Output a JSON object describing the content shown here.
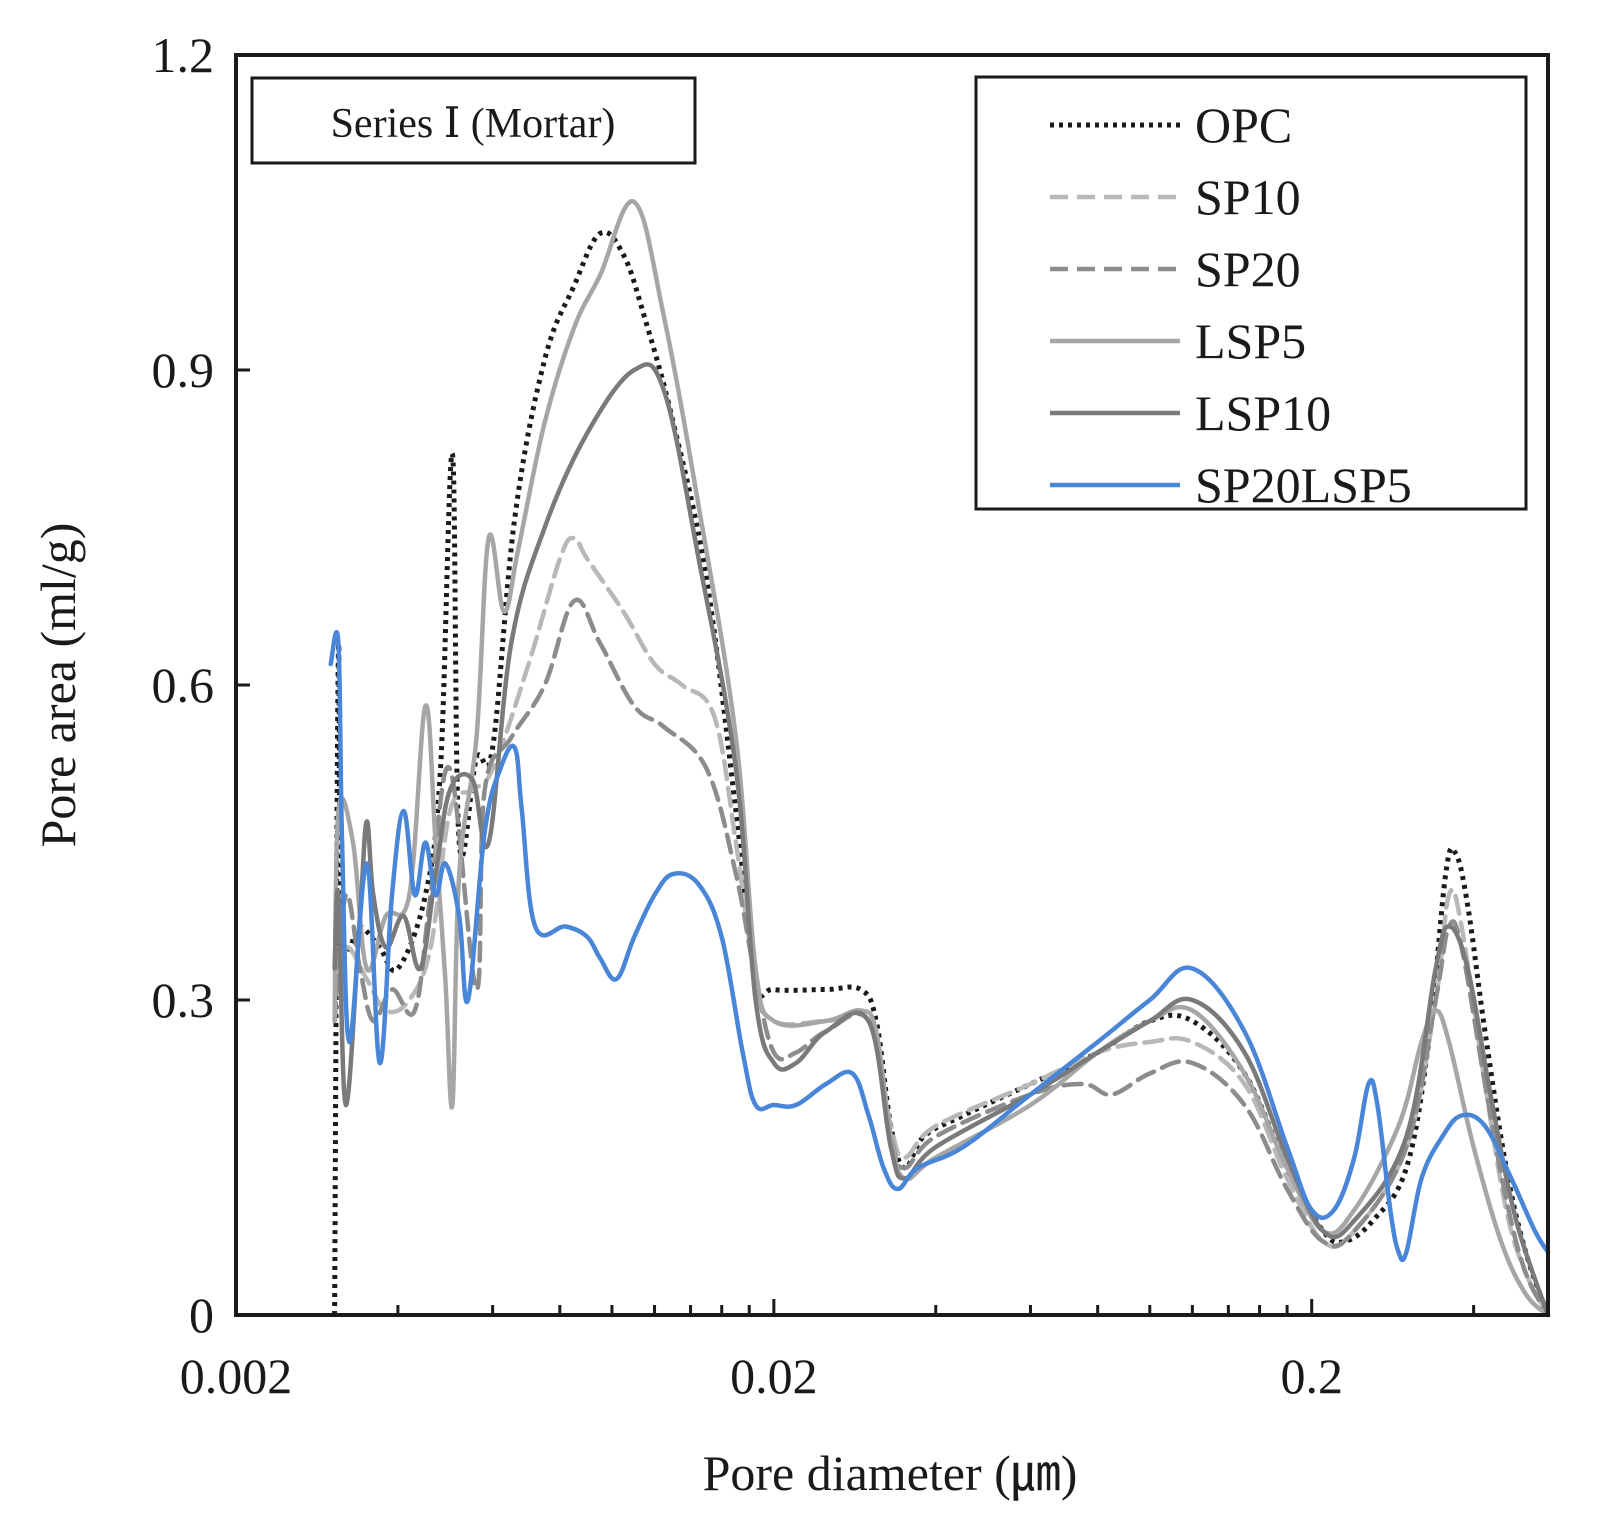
{
  "chart_data": {
    "type": "line",
    "title": "",
    "panel_label": "Series  Ⅰ (Mortar)",
    "xlabel": "Pore diameter (㎛)",
    "ylabel": "Pore area (ml/g)",
    "xscale": "log",
    "xlim": [
      0.002,
      0.55
    ],
    "ylim": [
      0,
      1.2
    ],
    "xticks": [
      0.002,
      0.02,
      0.2
    ],
    "xtick_labels": [
      "0.002",
      "0.02",
      "0.2"
    ],
    "yticks": [
      0,
      0.3,
      0.6,
      0.9,
      1.2
    ],
    "ytick_labels": [
      "0",
      "0.3",
      "0.6",
      "0.9",
      "1.2"
    ],
    "grid": false,
    "legend_position": "top-right",
    "series": [
      {
        "name": "OPC",
        "color": "#1a1a1a",
        "dash": "dotted",
        "points": [
          [
            0.00305,
            0.0
          ],
          [
            0.0031,
            0.63
          ],
          [
            0.00315,
            0.36
          ],
          [
            0.0034,
            0.37
          ],
          [
            0.0037,
            0.35
          ],
          [
            0.004,
            0.33
          ],
          [
            0.0045,
            0.4
          ],
          [
            0.0048,
            0.52
          ],
          [
            0.00505,
            0.82
          ],
          [
            0.0052,
            0.45
          ],
          [
            0.0056,
            0.53
          ],
          [
            0.006,
            0.54
          ],
          [
            0.0066,
            0.76
          ],
          [
            0.0075,
            0.91
          ],
          [
            0.0085,
            0.98
          ],
          [
            0.0095,
            1.03
          ],
          [
            0.0105,
            1.01
          ],
          [
            0.0115,
            0.95
          ],
          [
            0.013,
            0.85
          ],
          [
            0.015,
            0.7
          ],
          [
            0.017,
            0.48
          ],
          [
            0.0185,
            0.32
          ],
          [
            0.02,
            0.31
          ],
          [
            0.025,
            0.31
          ],
          [
            0.029,
            0.31
          ],
          [
            0.031,
            0.28
          ],
          [
            0.033,
            0.18
          ],
          [
            0.035,
            0.14
          ],
          [
            0.038,
            0.17
          ],
          [
            0.045,
            0.19
          ],
          [
            0.06,
            0.22
          ],
          [
            0.08,
            0.25
          ],
          [
            0.1,
            0.28
          ],
          [
            0.12,
            0.28
          ],
          [
            0.15,
            0.23
          ],
          [
            0.18,
            0.14
          ],
          [
            0.21,
            0.08
          ],
          [
            0.23,
            0.07
          ],
          [
            0.26,
            0.09
          ],
          [
            0.3,
            0.14
          ],
          [
            0.33,
            0.26
          ],
          [
            0.355,
            0.42
          ],
          [
            0.37,
            0.44
          ],
          [
            0.39,
            0.39
          ],
          [
            0.42,
            0.27
          ],
          [
            0.46,
            0.14
          ],
          [
            0.5,
            0.06
          ],
          [
            0.55,
            0.0
          ]
        ]
      },
      {
        "name": "SP10",
        "color": "#b8b8b8",
        "dash": "dashed",
        "points": [
          [
            0.00305,
            0.3
          ],
          [
            0.0032,
            0.35
          ],
          [
            0.0035,
            0.32
          ],
          [
            0.0038,
            0.29
          ],
          [
            0.0042,
            0.3
          ],
          [
            0.0046,
            0.35
          ],
          [
            0.005,
            0.48
          ],
          [
            0.0055,
            0.5
          ],
          [
            0.006,
            0.52
          ],
          [
            0.007,
            0.62
          ],
          [
            0.008,
            0.72
          ],
          [
            0.0085,
            0.74
          ],
          [
            0.009,
            0.72
          ],
          [
            0.0105,
            0.67
          ],
          [
            0.012,
            0.62
          ],
          [
            0.0135,
            0.6
          ],
          [
            0.0155,
            0.57
          ],
          [
            0.017,
            0.45
          ],
          [
            0.0185,
            0.32
          ],
          [
            0.02,
            0.28
          ],
          [
            0.025,
            0.28
          ],
          [
            0.03,
            0.28
          ],
          [
            0.033,
            0.18
          ],
          [
            0.035,
            0.15
          ],
          [
            0.04,
            0.18
          ],
          [
            0.06,
            0.22
          ],
          [
            0.08,
            0.25
          ],
          [
            0.1,
            0.26
          ],
          [
            0.12,
            0.26
          ],
          [
            0.15,
            0.22
          ],
          [
            0.18,
            0.13
          ],
          [
            0.21,
            0.07
          ],
          [
            0.24,
            0.08
          ],
          [
            0.3,
            0.16
          ],
          [
            0.34,
            0.3
          ],
          [
            0.36,
            0.4
          ],
          [
            0.38,
            0.37
          ],
          [
            0.42,
            0.22
          ],
          [
            0.46,
            0.1
          ],
          [
            0.5,
            0.04
          ],
          [
            0.55,
            0.0
          ]
        ]
      },
      {
        "name": "SP20",
        "color": "#8c8c8c",
        "dash": "dashed",
        "points": [
          [
            0.00305,
            0.28
          ],
          [
            0.0032,
            0.4
          ],
          [
            0.0034,
            0.33
          ],
          [
            0.0036,
            0.28
          ],
          [
            0.0039,
            0.31
          ],
          [
            0.0043,
            0.29
          ],
          [
            0.0046,
            0.4
          ],
          [
            0.005,
            0.52
          ],
          [
            0.0056,
            0.31
          ],
          [
            0.0058,
            0.5
          ],
          [
            0.0065,
            0.55
          ],
          [
            0.0075,
            0.6
          ],
          [
            0.0085,
            0.68
          ],
          [
            0.0095,
            0.64
          ],
          [
            0.011,
            0.58
          ],
          [
            0.0125,
            0.56
          ],
          [
            0.015,
            0.52
          ],
          [
            0.017,
            0.42
          ],
          [
            0.0185,
            0.32
          ],
          [
            0.02,
            0.25
          ],
          [
            0.022,
            0.25
          ],
          [
            0.025,
            0.27
          ],
          [
            0.03,
            0.28
          ],
          [
            0.033,
            0.17
          ],
          [
            0.035,
            0.14
          ],
          [
            0.04,
            0.17
          ],
          [
            0.06,
            0.21
          ],
          [
            0.075,
            0.22
          ],
          [
            0.085,
            0.21
          ],
          [
            0.1,
            0.23
          ],
          [
            0.12,
            0.24
          ],
          [
            0.15,
            0.2
          ],
          [
            0.18,
            0.12
          ],
          [
            0.21,
            0.07
          ],
          [
            0.24,
            0.08
          ],
          [
            0.3,
            0.16
          ],
          [
            0.34,
            0.3
          ],
          [
            0.36,
            0.37
          ],
          [
            0.38,
            0.35
          ],
          [
            0.42,
            0.22
          ],
          [
            0.46,
            0.11
          ],
          [
            0.5,
            0.04
          ],
          [
            0.55,
            0.0
          ]
        ]
      },
      {
        "name": "LSP5",
        "color": "#a6a6a6",
        "dash": "solid",
        "points": [
          [
            0.00305,
            0.28
          ],
          [
            0.0031,
            0.48
          ],
          [
            0.0033,
            0.45
          ],
          [
            0.0035,
            0.33
          ],
          [
            0.0038,
            0.38
          ],
          [
            0.0042,
            0.4
          ],
          [
            0.0045,
            0.58
          ],
          [
            0.0047,
            0.45
          ],
          [
            0.0049,
            0.32
          ],
          [
            0.00505,
            0.2
          ],
          [
            0.0052,
            0.42
          ],
          [
            0.0056,
            0.55
          ],
          [
            0.0059,
            0.74
          ],
          [
            0.0063,
            0.67
          ],
          [
            0.0067,
            0.73
          ],
          [
            0.0075,
            0.85
          ],
          [
            0.0085,
            0.94
          ],
          [
            0.0095,
            0.99
          ],
          [
            0.011,
            1.06
          ],
          [
            0.0125,
            0.95
          ],
          [
            0.0145,
            0.77
          ],
          [
            0.017,
            0.55
          ],
          [
            0.0185,
            0.33
          ],
          [
            0.02,
            0.28
          ],
          [
            0.025,
            0.28
          ],
          [
            0.029,
            0.29
          ],
          [
            0.031,
            0.27
          ],
          [
            0.033,
            0.17
          ],
          [
            0.035,
            0.13
          ],
          [
            0.04,
            0.15
          ],
          [
            0.06,
            0.2
          ],
          [
            0.08,
            0.25
          ],
          [
            0.1,
            0.28
          ],
          [
            0.12,
            0.29
          ],
          [
            0.15,
            0.23
          ],
          [
            0.18,
            0.14
          ],
          [
            0.21,
            0.08
          ],
          [
            0.24,
            0.1
          ],
          [
            0.29,
            0.18
          ],
          [
            0.32,
            0.26
          ],
          [
            0.34,
            0.29
          ],
          [
            0.36,
            0.26
          ],
          [
            0.4,
            0.16
          ],
          [
            0.45,
            0.07
          ],
          [
            0.5,
            0.02
          ],
          [
            0.55,
            0.0
          ]
        ]
      },
      {
        "name": "LSP10",
        "color": "#7a7a7a",
        "dash": "solid",
        "points": [
          [
            0.00305,
            0.33
          ],
          [
            0.0031,
            0.4
          ],
          [
            0.0032,
            0.2
          ],
          [
            0.0034,
            0.38
          ],
          [
            0.0035,
            0.47
          ],
          [
            0.0036,
            0.4
          ],
          [
            0.0038,
            0.35
          ],
          [
            0.0041,
            0.38
          ],
          [
            0.0044,
            0.33
          ],
          [
            0.0047,
            0.42
          ],
          [
            0.005,
            0.5
          ],
          [
            0.0055,
            0.51
          ],
          [
            0.0059,
            0.45
          ],
          [
            0.0065,
            0.64
          ],
          [
            0.0075,
            0.75
          ],
          [
            0.009,
            0.84
          ],
          [
            0.011,
            0.9
          ],
          [
            0.0125,
            0.88
          ],
          [
            0.0145,
            0.72
          ],
          [
            0.017,
            0.52
          ],
          [
            0.0185,
            0.3
          ],
          [
            0.02,
            0.24
          ],
          [
            0.022,
            0.24
          ],
          [
            0.025,
            0.27
          ],
          [
            0.03,
            0.28
          ],
          [
            0.033,
            0.16
          ],
          [
            0.035,
            0.13
          ],
          [
            0.04,
            0.16
          ],
          [
            0.06,
            0.21
          ],
          [
            0.08,
            0.25
          ],
          [
            0.1,
            0.28
          ],
          [
            0.12,
            0.3
          ],
          [
            0.15,
            0.25
          ],
          [
            0.18,
            0.15
          ],
          [
            0.21,
            0.08
          ],
          [
            0.24,
            0.09
          ],
          [
            0.3,
            0.17
          ],
          [
            0.34,
            0.33
          ],
          [
            0.36,
            0.37
          ],
          [
            0.39,
            0.33
          ],
          [
            0.43,
            0.21
          ],
          [
            0.48,
            0.09
          ],
          [
            0.55,
            0.0
          ]
        ]
      },
      {
        "name": "SP20LSP5",
        "color": "#4a86d8",
        "dash": "solid",
        "points": [
          [
            0.003,
            0.62
          ],
          [
            0.0031,
            0.64
          ],
          [
            0.00315,
            0.45
          ],
          [
            0.00325,
            0.26
          ],
          [
            0.0035,
            0.43
          ],
          [
            0.0037,
            0.24
          ],
          [
            0.0039,
            0.4
          ],
          [
            0.0041,
            0.48
          ],
          [
            0.0043,
            0.4
          ],
          [
            0.0045,
            0.45
          ],
          [
            0.0047,
            0.4
          ],
          [
            0.0049,
            0.43
          ],
          [
            0.0052,
            0.38
          ],
          [
            0.0054,
            0.3
          ],
          [
            0.0058,
            0.46
          ],
          [
            0.0062,
            0.52
          ],
          [
            0.0066,
            0.54
          ],
          [
            0.0068,
            0.48
          ],
          [
            0.0072,
            0.37
          ],
          [
            0.0082,
            0.37
          ],
          [
            0.009,
            0.36
          ],
          [
            0.0095,
            0.34
          ],
          [
            0.0102,
            0.32
          ],
          [
            0.011,
            0.36
          ],
          [
            0.012,
            0.4
          ],
          [
            0.013,
            0.42
          ],
          [
            0.0145,
            0.41
          ],
          [
            0.016,
            0.36
          ],
          [
            0.0175,
            0.25
          ],
          [
            0.0185,
            0.2
          ],
          [
            0.02,
            0.2
          ],
          [
            0.022,
            0.2
          ],
          [
            0.025,
            0.22
          ],
          [
            0.028,
            0.23
          ],
          [
            0.03,
            0.19
          ],
          [
            0.032,
            0.14
          ],
          [
            0.034,
            0.12
          ],
          [
            0.037,
            0.14
          ],
          [
            0.045,
            0.16
          ],
          [
            0.06,
            0.21
          ],
          [
            0.08,
            0.26
          ],
          [
            0.1,
            0.3
          ],
          [
            0.12,
            0.33
          ],
          [
            0.15,
            0.27
          ],
          [
            0.18,
            0.16
          ],
          [
            0.2,
            0.1
          ],
          [
            0.22,
            0.1
          ],
          [
            0.24,
            0.15
          ],
          [
            0.255,
            0.22
          ],
          [
            0.265,
            0.2
          ],
          [
            0.28,
            0.1
          ],
          [
            0.29,
            0.06
          ],
          [
            0.3,
            0.06
          ],
          [
            0.32,
            0.13
          ],
          [
            0.35,
            0.17
          ],
          [
            0.38,
            0.19
          ],
          [
            0.42,
            0.18
          ],
          [
            0.47,
            0.13
          ],
          [
            0.52,
            0.08
          ],
          [
            0.55,
            0.06
          ]
        ]
      }
    ]
  }
}
